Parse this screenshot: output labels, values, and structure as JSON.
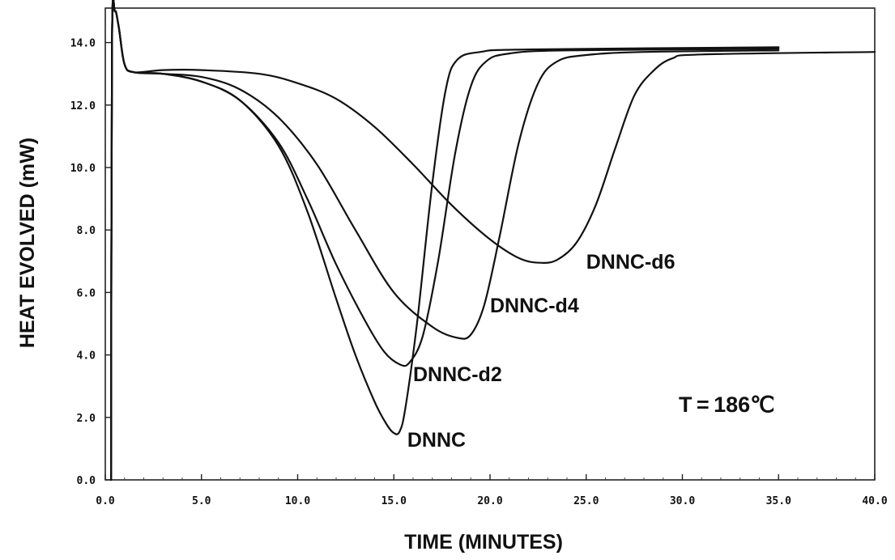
{
  "chart_data": {
    "type": "line",
    "title": "",
    "xlabel": "TIME (MINUTES)",
    "ylabel": "HEAT EVOLVED (mW)",
    "xlim": [
      0,
      40
    ],
    "ylim": [
      0,
      15
    ],
    "x_ticks": [
      "0.0",
      "5.0",
      "10.0",
      "15.0",
      "20.0",
      "25.0",
      "30.0",
      "35.0",
      "40.0"
    ],
    "y_ticks": [
      "0.0",
      "2.0",
      "4.0",
      "6.0",
      "8.0",
      "10.0",
      "12.0",
      "14.0"
    ],
    "grid": false,
    "annotation": "T = 186℃",
    "series": [
      {
        "name": "DNNC",
        "points": [
          [
            0.3,
            0
          ],
          [
            0.35,
            14.0
          ],
          [
            0.5,
            15.0
          ],
          [
            0.7,
            14.5
          ],
          [
            1.0,
            13.3
          ],
          [
            1.5,
            13.05
          ],
          [
            3,
            13.0
          ],
          [
            5,
            12.75
          ],
          [
            7,
            12.15
          ],
          [
            9,
            10.7
          ],
          [
            10.5,
            8.6
          ],
          [
            12,
            5.8
          ],
          [
            13,
            4.0
          ],
          [
            14,
            2.5
          ],
          [
            14.6,
            1.8
          ],
          [
            15.0,
            1.5
          ],
          [
            15.3,
            1.55
          ],
          [
            15.6,
            2.3
          ],
          [
            16.2,
            5.0
          ],
          [
            17.0,
            9.5
          ],
          [
            17.7,
            12.5
          ],
          [
            18.3,
            13.45
          ],
          [
            19.5,
            13.7
          ],
          [
            22,
            13.78
          ],
          [
            35,
            13.85
          ]
        ]
      },
      {
        "name": "DNNC-d2",
        "points": [
          [
            0.3,
            0
          ],
          [
            0.35,
            14.0
          ],
          [
            0.5,
            15.0
          ],
          [
            0.7,
            14.5
          ],
          [
            1.0,
            13.3
          ],
          [
            1.5,
            13.05
          ],
          [
            3,
            13.0
          ],
          [
            5,
            12.75
          ],
          [
            7,
            12.15
          ],
          [
            9,
            10.8
          ],
          [
            10.5,
            9.0
          ],
          [
            12,
            6.9
          ],
          [
            13.5,
            5.1
          ],
          [
            14.5,
            4.1
          ],
          [
            15.3,
            3.7
          ],
          [
            15.8,
            3.75
          ],
          [
            16.5,
            4.6
          ],
          [
            17.3,
            7.0
          ],
          [
            18.2,
            10.5
          ],
          [
            19.0,
            12.6
          ],
          [
            19.8,
            13.4
          ],
          [
            21,
            13.65
          ],
          [
            24,
            13.75
          ],
          [
            35,
            13.8
          ]
        ]
      },
      {
        "name": "DNNC-d4",
        "points": [
          [
            0.3,
            0
          ],
          [
            0.35,
            14.0
          ],
          [
            0.5,
            15.0
          ],
          [
            0.7,
            14.5
          ],
          [
            1.0,
            13.3
          ],
          [
            1.5,
            13.05
          ],
          [
            3,
            13.0
          ],
          [
            5,
            12.9
          ],
          [
            7,
            12.5
          ],
          [
            9,
            11.6
          ],
          [
            11,
            10.1
          ],
          [
            13,
            8.0
          ],
          [
            15,
            6.0
          ],
          [
            17,
            4.9
          ],
          [
            18.3,
            4.55
          ],
          [
            19.0,
            4.65
          ],
          [
            19.7,
            5.6
          ],
          [
            20.5,
            7.8
          ],
          [
            21.5,
            10.8
          ],
          [
            22.5,
            12.7
          ],
          [
            23.5,
            13.4
          ],
          [
            25,
            13.6
          ],
          [
            28,
            13.7
          ],
          [
            35,
            13.75
          ]
        ]
      },
      {
        "name": "DNNC-d6",
        "points": [
          [
            0.3,
            0
          ],
          [
            0.35,
            14.0
          ],
          [
            0.5,
            15.0
          ],
          [
            0.7,
            14.5
          ],
          [
            1.0,
            13.3
          ],
          [
            1.5,
            13.05
          ],
          [
            3,
            13.12
          ],
          [
            5,
            13.12
          ],
          [
            8,
            13.0
          ],
          [
            10,
            12.7
          ],
          [
            12,
            12.2
          ],
          [
            14,
            11.3
          ],
          [
            16,
            10.1
          ],
          [
            18,
            8.8
          ],
          [
            20,
            7.7
          ],
          [
            21.5,
            7.1
          ],
          [
            22.6,
            6.95
          ],
          [
            23.5,
            7.05
          ],
          [
            24.5,
            7.6
          ],
          [
            25.5,
            8.8
          ],
          [
            26.5,
            10.6
          ],
          [
            27.5,
            12.3
          ],
          [
            28.5,
            13.1
          ],
          [
            29.5,
            13.5
          ],
          [
            31,
            13.62
          ],
          [
            40,
            13.7
          ]
        ]
      }
    ]
  }
}
